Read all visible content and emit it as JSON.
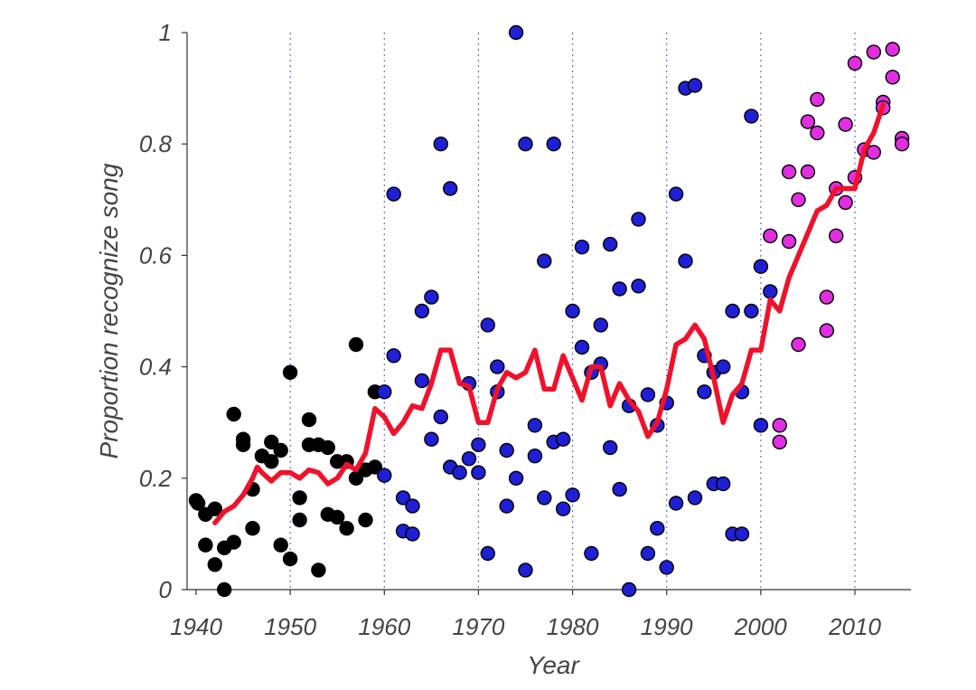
{
  "chart_data": {
    "type": "scatter",
    "title": "",
    "xlabel": "Year",
    "ylabel": "Proportion recognize song",
    "xlim": [
      1939,
      2016
    ],
    "ylim": [
      0,
      1
    ],
    "xticks": [
      1940,
      1950,
      1960,
      1970,
      1980,
      1990,
      2000,
      2010
    ],
    "yticks": [
      0,
      0.2,
      0.4,
      0.6,
      0.8,
      1
    ],
    "ytick_labels": [
      "0",
      "0.2",
      "0.4",
      "0.6",
      "0.8",
      "1"
    ],
    "grid": "vertical dotted lines at decade ticks",
    "legend": "none",
    "colors": {
      "early": "#000000",
      "middle": "#1f1fd6",
      "recent": "#e02ee0",
      "trend": "#f0112b",
      "grid": "#6a6ad8"
    },
    "series": [
      {
        "color": "#000000",
        "points": [
          [
            1940,
            0.16
          ],
          [
            1940.2,
            0.155
          ],
          [
            1941,
            0.135
          ],
          [
            1941,
            0.08
          ],
          [
            1942,
            0.145
          ],
          [
            1942,
            0.045
          ],
          [
            1943,
            0.0
          ],
          [
            1943,
            0.075
          ],
          [
            1944,
            0.315
          ],
          [
            1944,
            0.085
          ],
          [
            1945,
            0.27
          ],
          [
            1945,
            0.26
          ],
          [
            1946,
            0.18
          ],
          [
            1946,
            0.11
          ],
          [
            1947,
            0.24
          ],
          [
            1948,
            0.265
          ],
          [
            1948,
            0.23
          ],
          [
            1949,
            0.25
          ],
          [
            1949,
            0.08
          ],
          [
            1950,
            0.39
          ],
          [
            1950,
            0.055
          ],
          [
            1951,
            0.165
          ],
          [
            1951,
            0.125
          ],
          [
            1952,
            0.305
          ],
          [
            1952,
            0.26
          ],
          [
            1953,
            0.26
          ],
          [
            1953,
            0.035
          ],
          [
            1954,
            0.255
          ],
          [
            1954,
            0.135
          ],
          [
            1955,
            0.23
          ],
          [
            1955,
            0.13
          ],
          [
            1956,
            0.23
          ],
          [
            1956,
            0.11
          ],
          [
            1957,
            0.44
          ],
          [
            1957,
            0.2
          ],
          [
            1958,
            0.215
          ],
          [
            1958,
            0.125
          ],
          [
            1959,
            0.355
          ],
          [
            1959,
            0.22
          ]
        ]
      },
      {
        "color": "#1f1fd6",
        "points": [
          [
            1960,
            0.355
          ],
          [
            1960,
            0.205
          ],
          [
            1961,
            0.71
          ],
          [
            1961,
            0.42
          ],
          [
            1962,
            0.165
          ],
          [
            1962,
            0.105
          ],
          [
            1963,
            0.15
          ],
          [
            1963,
            0.1
          ],
          [
            1964,
            0.5
          ],
          [
            1964,
            0.375
          ],
          [
            1965,
            0.525
          ],
          [
            1965,
            0.27
          ],
          [
            1966,
            0.8
          ],
          [
            1966,
            0.31
          ],
          [
            1967,
            0.72
          ],
          [
            1967,
            0.22
          ],
          [
            1968,
            0.21
          ],
          [
            1969,
            0.37
          ],
          [
            1969,
            0.235
          ],
          [
            1970,
            0.26
          ],
          [
            1970,
            0.21
          ],
          [
            1971,
            0.475
          ],
          [
            1971,
            0.065
          ],
          [
            1972,
            0.4
          ],
          [
            1972,
            0.355
          ],
          [
            1973,
            0.25
          ],
          [
            1973,
            0.15
          ],
          [
            1974,
            1.0
          ],
          [
            1974,
            0.2
          ],
          [
            1975,
            0.8
          ],
          [
            1975,
            0.035
          ],
          [
            1976,
            0.295
          ],
          [
            1976,
            0.24
          ],
          [
            1977,
            0.59
          ],
          [
            1977,
            0.165
          ],
          [
            1978,
            0.8
          ],
          [
            1978,
            0.265
          ],
          [
            1979,
            0.27
          ],
          [
            1979,
            0.145
          ],
          [
            1980,
            0.5
          ],
          [
            1980,
            0.17
          ],
          [
            1981,
            0.615
          ],
          [
            1981,
            0.435
          ],
          [
            1982,
            0.39
          ],
          [
            1982,
            0.065
          ],
          [
            1983,
            0.475
          ],
          [
            1983,
            0.405
          ],
          [
            1984,
            0.62
          ],
          [
            1984,
            0.255
          ],
          [
            1985,
            0.54
          ],
          [
            1985,
            0.18
          ],
          [
            1986,
            0.33
          ],
          [
            1986,
            0.0
          ],
          [
            1987,
            0.665
          ],
          [
            1987,
            0.545
          ],
          [
            1988,
            0.35
          ],
          [
            1988,
            0.065
          ],
          [
            1989,
            0.295
          ],
          [
            1989,
            0.11
          ],
          [
            1990,
            0.335
          ],
          [
            1990,
            0.04
          ],
          [
            1991,
            0.71
          ],
          [
            1991,
            0.155
          ],
          [
            1992,
            0.9
          ],
          [
            1992,
            0.59
          ],
          [
            1993,
            0.905
          ],
          [
            1993,
            0.165
          ],
          [
            1994,
            0.42
          ],
          [
            1994,
            0.355
          ],
          [
            1995,
            0.39
          ],
          [
            1995,
            0.19
          ],
          [
            1996,
            0.4
          ],
          [
            1996,
            0.19
          ],
          [
            1997,
            0.5
          ],
          [
            1997,
            0.1
          ],
          [
            1998,
            0.355
          ],
          [
            1998,
            0.1
          ],
          [
            1999,
            0.85
          ],
          [
            1999,
            0.5
          ],
          [
            2000,
            0.58
          ],
          [
            2000,
            0.295
          ],
          [
            2001,
            0.535
          ]
        ]
      },
      {
        "color": "#e02ee0",
        "points": [
          [
            2001,
            0.635
          ],
          [
            2002,
            0.295
          ],
          [
            2002,
            0.265
          ],
          [
            2003,
            0.75
          ],
          [
            2003,
            0.625
          ],
          [
            2004,
            0.7
          ],
          [
            2004,
            0.44
          ],
          [
            2005,
            0.84
          ],
          [
            2005,
            0.75
          ],
          [
            2006,
            0.88
          ],
          [
            2006,
            0.82
          ],
          [
            2007,
            0.525
          ],
          [
            2007,
            0.465
          ],
          [
            2008,
            0.72
          ],
          [
            2008,
            0.635
          ],
          [
            2009,
            0.835
          ],
          [
            2009,
            0.695
          ],
          [
            2010,
            0.945
          ],
          [
            2010,
            0.74
          ],
          [
            2011,
            0.79
          ],
          [
            2012,
            0.965
          ],
          [
            2012,
            0.785
          ],
          [
            2013,
            0.875
          ],
          [
            2013,
            0.865
          ],
          [
            2014,
            0.97
          ],
          [
            2014,
            0.92
          ],
          [
            2015,
            0.81
          ],
          [
            2015,
            0.8
          ]
        ]
      }
    ],
    "trend_line": {
      "color": "#f0112b",
      "points": [
        [
          1942,
          0.12
        ],
        [
          1943,
          0.14
        ],
        [
          1944,
          0.15
        ],
        [
          1945,
          0.17
        ],
        [
          1946,
          0.2
        ],
        [
          1946.5,
          0.22
        ],
        [
          1947,
          0.21
        ],
        [
          1948,
          0.195
        ],
        [
          1949,
          0.21
        ],
        [
          1950,
          0.21
        ],
        [
          1951,
          0.2
        ],
        [
          1952,
          0.215
        ],
        [
          1953,
          0.21
        ],
        [
          1954,
          0.19
        ],
        [
          1955,
          0.2
        ],
        [
          1956,
          0.225
        ],
        [
          1957,
          0.215
        ],
        [
          1958,
          0.245
        ],
        [
          1959,
          0.325
        ],
        [
          1960,
          0.31
        ],
        [
          1961,
          0.28
        ],
        [
          1962,
          0.3
        ],
        [
          1963,
          0.33
        ],
        [
          1964,
          0.325
        ],
        [
          1965,
          0.37
        ],
        [
          1966,
          0.43
        ],
        [
          1967,
          0.43
        ],
        [
          1968,
          0.37
        ],
        [
          1969,
          0.365
        ],
        [
          1970,
          0.3
        ],
        [
          1971,
          0.3
        ],
        [
          1972,
          0.36
        ],
        [
          1973,
          0.39
        ],
        [
          1974,
          0.38
        ],
        [
          1975,
          0.39
        ],
        [
          1976,
          0.43
        ],
        [
          1977,
          0.36
        ],
        [
          1978,
          0.36
        ],
        [
          1979,
          0.42
        ],
        [
          1980,
          0.38
        ],
        [
          1981,
          0.34
        ],
        [
          1982,
          0.4
        ],
        [
          1983,
          0.4
        ],
        [
          1984,
          0.33
        ],
        [
          1985,
          0.37
        ],
        [
          1986,
          0.34
        ],
        [
          1987,
          0.32
        ],
        [
          1988,
          0.275
        ],
        [
          1989,
          0.3
        ],
        [
          1990,
          0.36
        ],
        [
          1991,
          0.44
        ],
        [
          1992,
          0.45
        ],
        [
          1993,
          0.475
        ],
        [
          1994,
          0.45
        ],
        [
          1995,
          0.38
        ],
        [
          1996,
          0.3
        ],
        [
          1997,
          0.35
        ],
        [
          1998,
          0.37
        ],
        [
          1999,
          0.43
        ],
        [
          2000,
          0.43
        ],
        [
          2001,
          0.52
        ],
        [
          2002,
          0.5
        ],
        [
          2003,
          0.56
        ],
        [
          2004,
          0.6
        ],
        [
          2005,
          0.64
        ],
        [
          2006,
          0.68
        ],
        [
          2007,
          0.69
        ],
        [
          2008,
          0.72
        ],
        [
          2009,
          0.72
        ],
        [
          2010,
          0.72
        ],
        [
          2011,
          0.79
        ],
        [
          2012,
          0.82
        ],
        [
          2013,
          0.87
        ]
      ]
    }
  }
}
